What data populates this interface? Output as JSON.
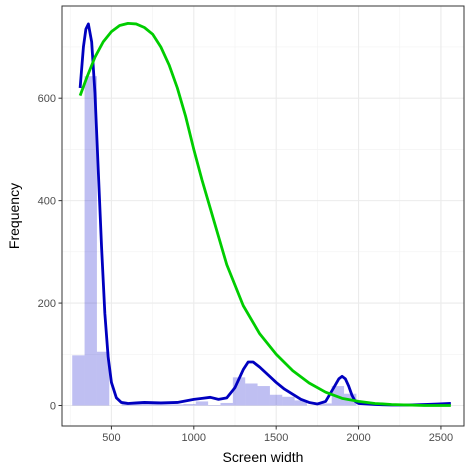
{
  "chart_data": {
    "type": "bar",
    "title": "",
    "xlabel": "Screen width",
    "ylabel": "Frequency",
    "xlim": [
      200,
      2640
    ],
    "ylim": [
      -40,
      780
    ],
    "x_ticks": [
      500,
      1000,
      1500,
      2000,
      2500
    ],
    "y_ticks": [
      0,
      200,
      400,
      600
    ],
    "grid": true,
    "legend": "none",
    "histogram": {
      "bin_width": 75,
      "bins": [
        {
          "x0": 262,
          "x1": 337,
          "count": 98
        },
        {
          "x0": 337,
          "x1": 412,
          "count": 643
        },
        {
          "x0": 412,
          "x1": 487,
          "count": 105
        },
        {
          "x0": 487,
          "x1": 562,
          "count": 0
        },
        {
          "x0": 562,
          "x1": 637,
          "count": 3
        },
        {
          "x0": 637,
          "x1": 712,
          "count": 3
        },
        {
          "x0": 712,
          "x1": 787,
          "count": 3
        },
        {
          "x0": 787,
          "x1": 862,
          "count": 2
        },
        {
          "x0": 862,
          "x1": 937,
          "count": 2
        },
        {
          "x0": 937,
          "x1": 1012,
          "count": 3
        },
        {
          "x0": 1012,
          "x1": 1087,
          "count": 8
        },
        {
          "x0": 1087,
          "x1": 1162,
          "count": 1
        },
        {
          "x0": 1162,
          "x1": 1237,
          "count": 5
        },
        {
          "x0": 1237,
          "x1": 1312,
          "count": 55
        },
        {
          "x0": 1312,
          "x1": 1387,
          "count": 43
        },
        {
          "x0": 1387,
          "x1": 1462,
          "count": 38
        },
        {
          "x0": 1462,
          "x1": 1537,
          "count": 21
        },
        {
          "x0": 1537,
          "x1": 1612,
          "count": 17
        },
        {
          "x0": 1612,
          "x1": 1687,
          "count": 10
        },
        {
          "x0": 1687,
          "x1": 1762,
          "count": 0
        },
        {
          "x0": 1762,
          "x1": 1837,
          "count": 4
        },
        {
          "x0": 1837,
          "x1": 1912,
          "count": 38
        },
        {
          "x0": 1912,
          "x1": 1987,
          "count": 23
        }
      ]
    },
    "series": [
      {
        "type": "line",
        "color": "#0000BF",
        "x": [
          310,
          330,
          345,
          360,
          380,
          400,
          420,
          440,
          460,
          480,
          500,
          530,
          560,
          600,
          650,
          700,
          800,
          900,
          1000,
          1050,
          1100,
          1150,
          1200,
          1250,
          1300,
          1330,
          1360,
          1400,
          1450,
          1500,
          1550,
          1600,
          1650,
          1700,
          1750,
          1800,
          1850,
          1880,
          1900,
          1920,
          1940,
          1960,
          1980,
          2000,
          2100,
          2200,
          2300,
          2400,
          2480,
          2560
        ],
        "y": [
          620,
          700,
          735,
          745,
          710,
          610,
          460,
          310,
          180,
          95,
          45,
          15,
          6,
          4,
          5,
          6,
          5,
          6,
          12,
          14,
          16,
          12,
          15,
          35,
          70,
          85,
          85,
          75,
          60,
          45,
          32,
          22,
          12,
          6,
          3,
          8,
          35,
          52,
          57,
          52,
          38,
          20,
          8,
          4,
          2,
          1,
          1,
          2,
          3,
          4
        ]
      },
      {
        "type": "line",
        "color": "#00CD00",
        "x": [
          310,
          350,
          400,
          450,
          500,
          550,
          600,
          650,
          700,
          750,
          800,
          850,
          900,
          950,
          1000,
          1050,
          1100,
          1150,
          1200,
          1300,
          1400,
          1500,
          1600,
          1700,
          1800,
          1900,
          2000,
          2100,
          2200,
          2300,
          2400,
          2560
        ],
        "y": [
          605,
          640,
          680,
          710,
          730,
          742,
          746,
          745,
          738,
          725,
          700,
          665,
          620,
          565,
          500,
          440,
          385,
          330,
          275,
          195,
          140,
          100,
          68,
          44,
          26,
          14,
          8,
          4,
          2,
          1,
          0,
          0
        ]
      }
    ]
  }
}
